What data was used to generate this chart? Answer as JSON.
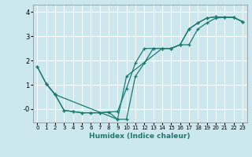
{
  "xlabel": "Humidex (Indice chaleur)",
  "background_color": "#cce8ee",
  "grid_color": "#ffffff",
  "line_color": "#1a7a6e",
  "xlim": [
    -0.5,
    23.5
  ],
  "ylim": [
    -0.55,
    4.3
  ],
  "xticks": [
    0,
    1,
    2,
    3,
    4,
    5,
    6,
    7,
    8,
    9,
    10,
    11,
    12,
    13,
    14,
    15,
    16,
    17,
    18,
    19,
    20,
    21,
    22,
    23
  ],
  "yticks": [
    0,
    1,
    2,
    3,
    4
  ],
  "ytick_labels": [
    "-0",
    "1",
    "2",
    "3",
    "4"
  ],
  "series1_x": [
    0,
    1,
    2,
    3,
    4,
    5,
    6,
    7,
    8,
    9,
    10,
    11,
    12,
    13,
    14,
    15,
    16,
    17,
    18,
    19,
    20,
    21,
    22,
    23
  ],
  "series1_y": [
    1.75,
    1.05,
    0.6,
    -0.05,
    -0.1,
    -0.15,
    -0.15,
    -0.15,
    -0.12,
    -0.1,
    0.85,
    1.9,
    2.5,
    2.5,
    2.5,
    2.5,
    2.65,
    3.3,
    3.55,
    3.75,
    3.8,
    3.78,
    3.78,
    3.6
  ],
  "series2_x": [
    0,
    1,
    2,
    3,
    4,
    5,
    6,
    7,
    8,
    9,
    10,
    11,
    12,
    13,
    14,
    15,
    16,
    17,
    18,
    19,
    20,
    21,
    22,
    23
  ],
  "series2_y": [
    1.75,
    1.05,
    0.6,
    -0.05,
    -0.1,
    -0.15,
    -0.15,
    -0.15,
    -0.12,
    -0.42,
    -0.42,
    1.35,
    1.9,
    2.5,
    2.5,
    2.5,
    2.65,
    3.3,
    3.55,
    3.75,
    3.8,
    3.78,
    3.78,
    3.6
  ],
  "series3_x": [
    1,
    2,
    9,
    10,
    14,
    15,
    16,
    17,
    18,
    19,
    20,
    21,
    22,
    23
  ],
  "series3_y": [
    1.05,
    0.6,
    -0.42,
    1.35,
    2.5,
    2.5,
    2.65,
    2.65,
    3.3,
    3.55,
    3.75,
    3.78,
    3.78,
    3.6
  ]
}
